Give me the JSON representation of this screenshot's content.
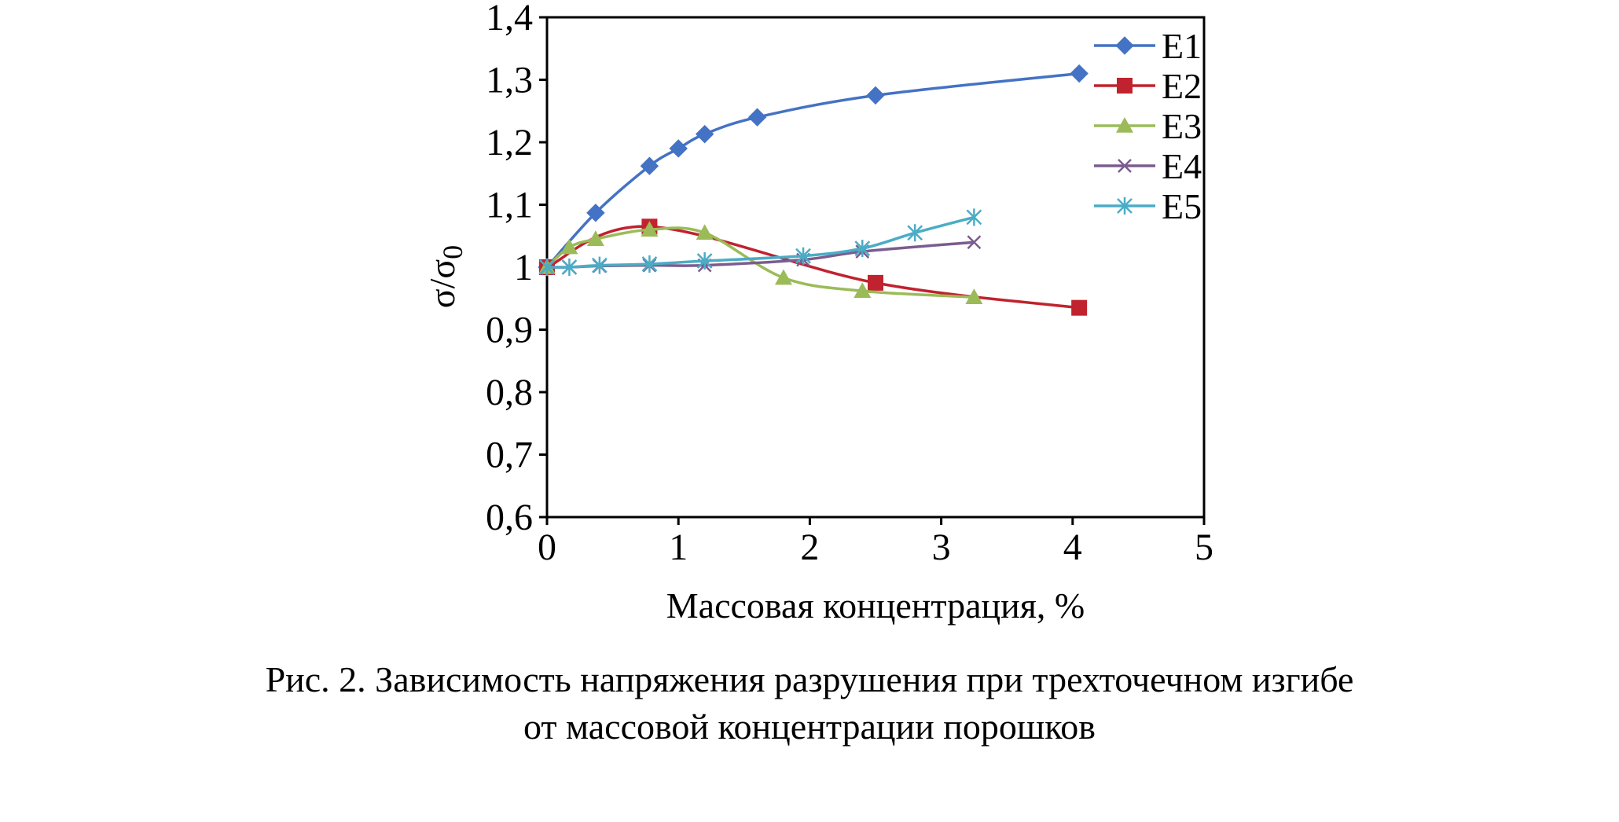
{
  "caption": {
    "line1": "Рис. 2. Зависимость напряжения разрушения при трехточечном изгибе",
    "line2": "от массовой концентрации порошков"
  },
  "chart_data": {
    "type": "line",
    "xlabel": "Массовая концентрация, %",
    "ylabel": "σ/σ",
    "ylabel_sub": "0",
    "xlim": [
      0,
      5
    ],
    "ylim": [
      0.6,
      1.4
    ],
    "xticks": [
      0,
      1,
      2,
      3,
      4,
      5
    ],
    "xtick_labels": [
      "0",
      "1",
      "2",
      "3",
      "4",
      "5"
    ],
    "yticks": [
      0.6,
      0.7,
      0.8,
      0.9,
      1.0,
      1.1,
      1.2,
      1.3,
      1.4
    ],
    "ytick_labels": [
      "0,6",
      "0,7",
      "0,8",
      "0,9",
      "1",
      "1,1",
      "1,2",
      "1,3",
      "1,4"
    ],
    "grid": false,
    "legend_position": "top-right",
    "series": [
      {
        "name": "E1",
        "color": "#4472C4",
        "marker": "diamond",
        "x": [
          0,
          0.37,
          0.78,
          1.0,
          1.2,
          1.6,
          2.5,
          4.05
        ],
        "y": [
          1.0,
          1.087,
          1.162,
          1.19,
          1.213,
          1.24,
          1.275,
          1.31
        ]
      },
      {
        "name": "E2",
        "color": "#C0222E",
        "marker": "square",
        "x": [
          0,
          0.78,
          2.5,
          4.05
        ],
        "y": [
          1.0,
          1.065,
          0.975,
          0.935
        ]
      },
      {
        "name": "E3",
        "color": "#9BBB59",
        "marker": "triangle",
        "x": [
          0,
          0.17,
          0.37,
          0.78,
          1.2,
          1.8,
          2.4,
          3.25
        ],
        "y": [
          1.0,
          1.032,
          1.045,
          1.06,
          1.055,
          0.983,
          0.962,
          0.952
        ]
      },
      {
        "name": "E4",
        "color": "#7B5C8F",
        "marker": "x",
        "x": [
          0,
          0.17,
          0.4,
          0.78,
          1.2,
          1.95,
          2.4,
          3.25
        ],
        "y": [
          1.0,
          1.0,
          1.002,
          1.003,
          1.003,
          1.012,
          1.025,
          1.04
        ]
      },
      {
        "name": "E5",
        "color": "#4BACC6",
        "marker": "star",
        "x": [
          0,
          0.17,
          0.4,
          0.78,
          1.2,
          1.95,
          2.4,
          2.8,
          3.25
        ],
        "y": [
          1.0,
          1.0,
          1.003,
          1.005,
          1.01,
          1.018,
          1.03,
          1.055,
          1.08
        ]
      }
    ]
  }
}
